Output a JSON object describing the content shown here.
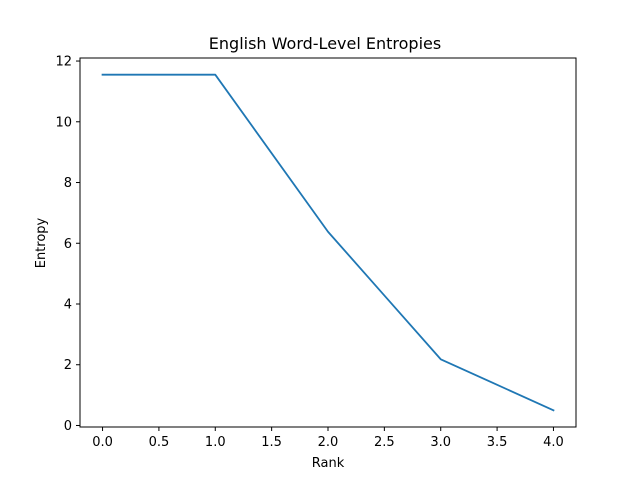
{
  "chart_data": {
    "type": "line",
    "title": "English Word-Level Entropies",
    "xlabel": "Rank",
    "ylabel": "Entropy",
    "x": [
      0,
      1,
      2,
      3,
      4
    ],
    "series": [
      {
        "values": [
          11.55,
          11.55,
          6.38,
          2.18,
          0.5
        ],
        "color": "#1f77b4"
      }
    ],
    "xlim": [
      -0.2,
      4.2
    ],
    "ylim": [
      -0.05,
      12.1
    ],
    "xticks": [
      0.0,
      0.5,
      1.0,
      1.5,
      2.0,
      2.5,
      3.0,
      3.5,
      4.0
    ],
    "xtick_labels": [
      "0.0",
      "0.5",
      "1.0",
      "1.5",
      "2.0",
      "2.5",
      "3.0",
      "3.5",
      "4.0"
    ],
    "yticks": [
      0,
      2,
      4,
      6,
      8,
      10,
      12
    ],
    "ytick_labels": [
      "0",
      "2",
      "4",
      "6",
      "8",
      "10",
      "12"
    ],
    "grid": false,
    "legend": "none"
  }
}
